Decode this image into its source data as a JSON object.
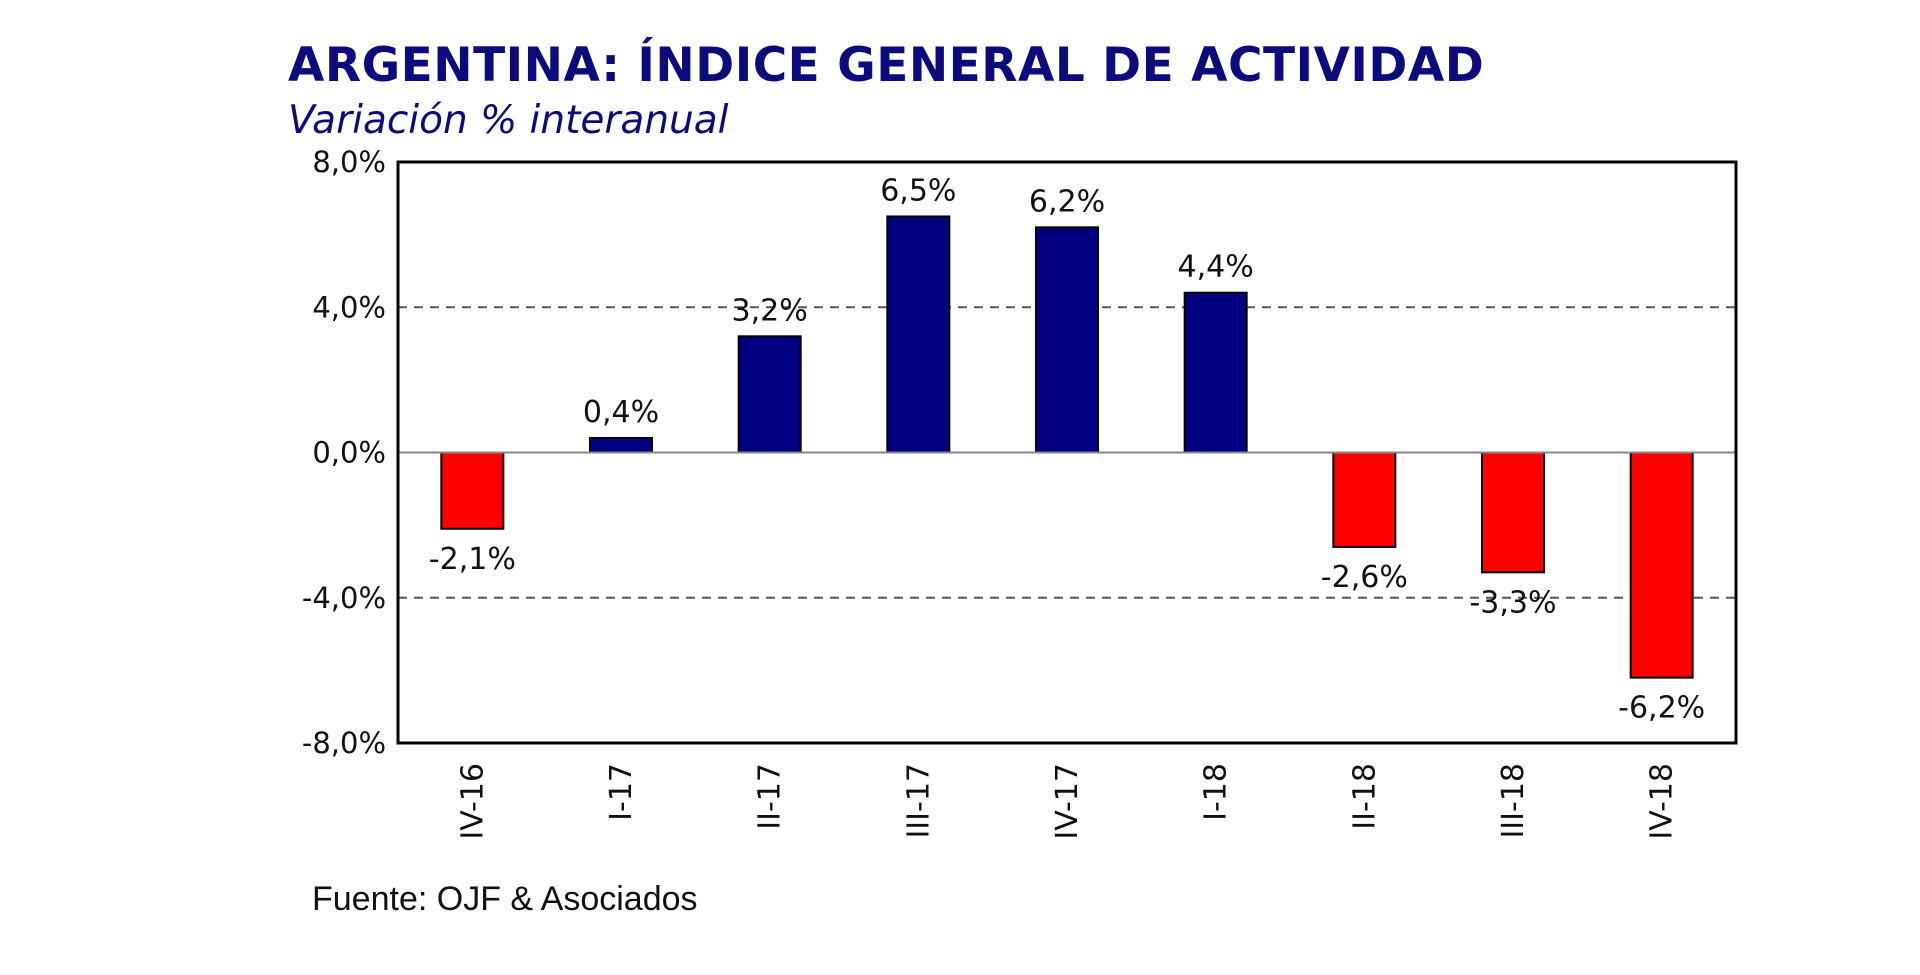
{
  "chart_data": {
    "type": "bar",
    "title": "ARGENTINA: ÍNDICE GENERAL DE ACTIVIDAD",
    "subtitle": "Variación % interanual",
    "categories": [
      "IV-16",
      "I-17",
      "II-17",
      "III-17",
      "IV-17",
      "I-18",
      "II-18",
      "III-18",
      "IV-18"
    ],
    "values": [
      -2.1,
      0.4,
      3.2,
      6.5,
      6.2,
      4.4,
      -2.6,
      -3.3,
      -6.2
    ],
    "data_labels": [
      "-2,1%",
      "0,4%",
      "3,2%",
      "6,5%",
      "6,2%",
      "4,4%",
      "-2,6%",
      "-3,3%",
      "-6,2%"
    ],
    "ylim": [
      -8,
      8
    ],
    "yticks": [
      {
        "value": 8,
        "label": "8,0%"
      },
      {
        "value": 4,
        "label": "4,0%"
      },
      {
        "value": 0,
        "label": "0,0%"
      },
      {
        "value": -4,
        "label": "-4,0%"
      },
      {
        "value": -8,
        "label": "-8,0%"
      }
    ],
    "dashed_gridlines": [
      4,
      -4
    ],
    "colors": {
      "positive": "#000080",
      "negative": "#ff0000",
      "title": "#0b0b7e"
    },
    "source": "Fuente: OJF & Asociados"
  }
}
